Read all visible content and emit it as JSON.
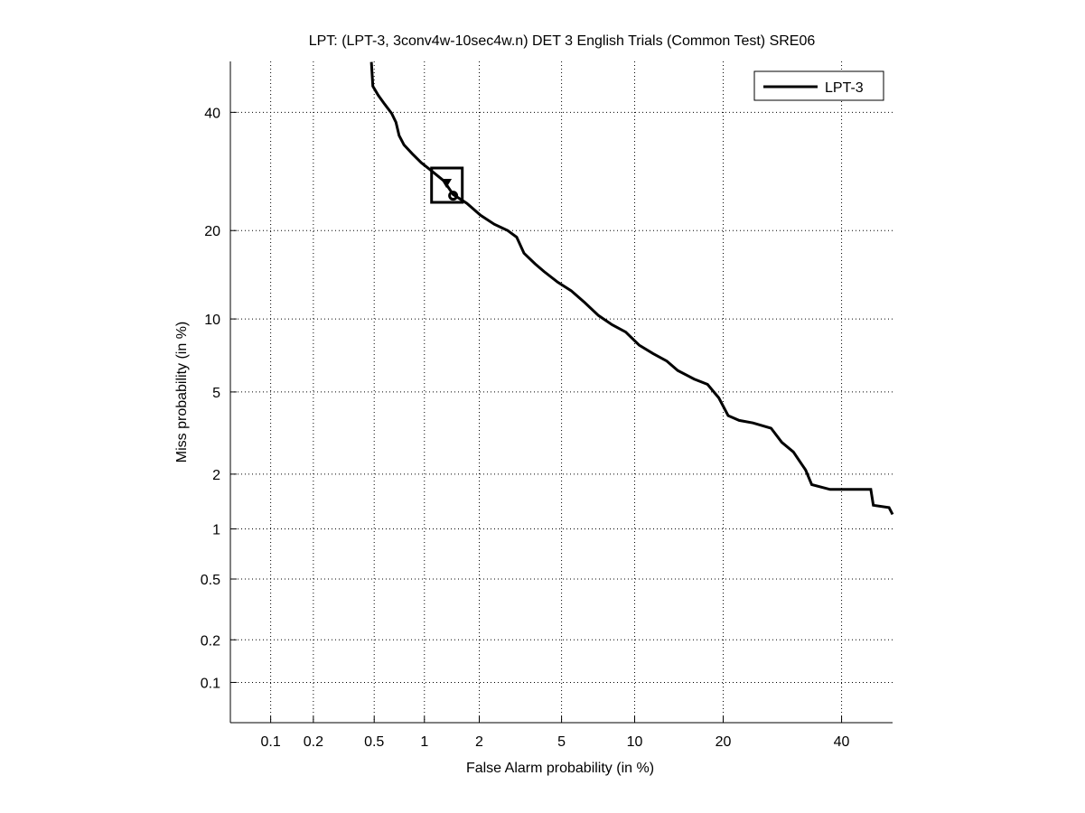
{
  "chart_data": {
    "type": "line",
    "scale": "probit (normal deviate)",
    "title": "LPT: (LPT-3, 3conv4w-10sec4w.n) DET 3 English Trials (Common Test) SRE06",
    "xlabel": "False Alarm probability (in %)",
    "ylabel": "Miss probability (in %)",
    "xlim": [
      0.05,
      50
    ],
    "ylim": [
      0.05,
      50
    ],
    "xticks": [
      0.1,
      0.2,
      0.5,
      1,
      2,
      5,
      10,
      20,
      40
    ],
    "xtick_labels": [
      "0.1",
      "0.2",
      "0.5",
      "1",
      "2",
      "5",
      "10",
      "20",
      "40"
    ],
    "yticks": [
      0.1,
      0.2,
      0.5,
      1,
      2,
      5,
      10,
      20,
      40
    ],
    "ytick_labels": [
      "0.1",
      "0.2",
      "0.5",
      "1",
      "2",
      "5",
      "10",
      "20",
      "40"
    ],
    "grid": true,
    "legend": {
      "position": "top-right",
      "entries": [
        "LPT-3"
      ]
    },
    "series": [
      {
        "name": "LPT-3",
        "color": "#000000",
        "x": [
          0.48,
          0.49,
          0.53,
          0.58,
          0.64,
          0.68,
          0.71,
          0.76,
          0.85,
          0.96,
          1.08,
          1.29,
          1.45,
          1.72,
          2.03,
          2.39,
          2.79,
          3.09,
          3.35,
          3.78,
          4.16,
          4.81,
          5.51,
          6.31,
          7.2,
          8.17,
          9.24,
          10.4,
          11.7,
          13.1,
          14.3,
          16.2,
          17.9,
          19.4,
          20.7,
          22.3,
          24.4,
          27.3,
          29.1,
          31.1,
          33.3,
          34.4,
          37.8,
          45.7,
          46.2,
          49.3,
          50
        ],
        "y": [
          49.9,
          45.1,
          43.3,
          41.6,
          39.8,
          38.1,
          35.6,
          33.9,
          32.3,
          30.7,
          29.5,
          27.6,
          25.4,
          24.0,
          22.2,
          20.9,
          20.0,
          19.1,
          17.0,
          15.7,
          14.8,
          13.6,
          12.7,
          11.5,
          10.3,
          9.5,
          8.9,
          7.9,
          7.3,
          6.8,
          6.2,
          5.7,
          5.4,
          4.7,
          3.9,
          3.7,
          3.6,
          3.4,
          2.9,
          2.6,
          2.1,
          1.76,
          1.66,
          1.66,
          1.36,
          1.32,
          1.21
        ]
      }
    ],
    "markers": [
      {
        "name": "min-dcf-box",
        "shape": "square",
        "x": 1.34,
        "y": 26.9
      },
      {
        "name": "operating-point-triangle",
        "shape": "triangle",
        "x": 1.33,
        "y": 27.2
      },
      {
        "name": "operating-point-circle",
        "shape": "circle",
        "x": 1.45,
        "y": 25.2
      }
    ]
  }
}
